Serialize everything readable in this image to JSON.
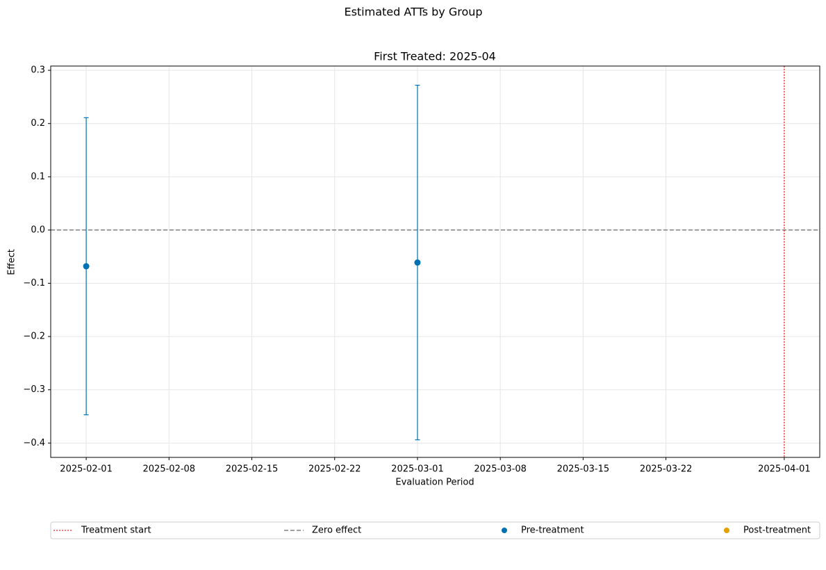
{
  "chart_data": {
    "type": "errorbar",
    "suptitle": "Estimated ATTs by Group",
    "title": "First Treated: 2025-04",
    "xlabel": "Evaluation Period",
    "ylabel": "Effect",
    "xlim": [
      "2025-01-29",
      "2025-04-04"
    ],
    "xticks": [
      "2025-02-01",
      "2025-02-08",
      "2025-02-15",
      "2025-02-22",
      "2025-03-01",
      "2025-03-08",
      "2025-03-15",
      "2025-03-22",
      "2025-04-01"
    ],
    "ylim": [
      -0.427,
      0.308
    ],
    "yticks": [
      0.3,
      0.2,
      0.1,
      {
        "value": 0,
        "label": "0.0"
      },
      {
        "value": -0.1,
        "label": "−0.1"
      },
      {
        "value": -0.2,
        "label": "−0.2"
      },
      {
        "value": -0.3,
        "label": "−0.3"
      },
      {
        "value": -0.4,
        "label": "−0.4"
      }
    ],
    "grid": true,
    "vline": {
      "name": "Treatment start",
      "x": "2025-04-01",
      "color": "#ff0000"
    },
    "hline": {
      "name": "Zero effect",
      "y": 0,
      "color": "#808080"
    },
    "series": [
      {
        "name": "Pre-treatment",
        "color": "#0072b2",
        "x": [
          "2025-02-01",
          "2025-03-01"
        ],
        "values": [
          -0.068,
          -0.061
        ],
        "errors": [
          0.279,
          0.333
        ]
      },
      {
        "name": "Post-treatment",
        "color": "#e69f00",
        "x": [],
        "values": [],
        "errors": []
      }
    ],
    "legend": "bottom"
  }
}
